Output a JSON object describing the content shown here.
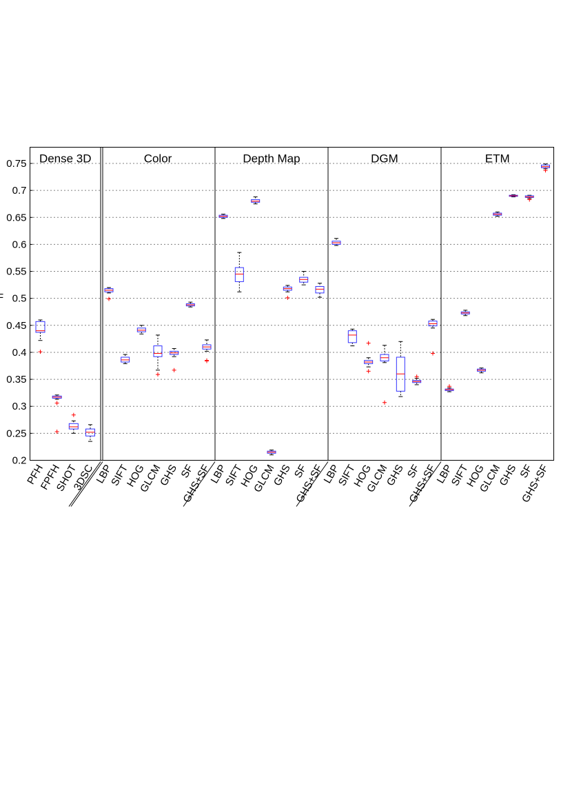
{
  "chart_data": {
    "type": "boxplot",
    "title": "",
    "ylabel": "F",
    "ylim": [
      0.2,
      0.78
    ],
    "yticks": [
      "0.2",
      "0.25",
      "0.3",
      "0.35",
      "0.4",
      "0.45",
      "0.5",
      "0.55",
      "0.6",
      "0.65",
      "0.7",
      "0.75"
    ],
    "grid": true,
    "groups": [
      {
        "name": "Dense 3D",
        "series": [
          {
            "label": "PFH",
            "q1": 0.437,
            "median": 0.44,
            "q3": 0.457,
            "lo": 0.422,
            "hi": 0.46,
            "outliers": [
              0.401
            ]
          },
          {
            "label": "FPFH",
            "q1": 0.315,
            "median": 0.317,
            "q3": 0.319,
            "lo": 0.313,
            "hi": 0.321,
            "outliers": [
              0.306,
              0.253
            ]
          },
          {
            "label": "SHOT",
            "q1": 0.258,
            "median": 0.262,
            "q3": 0.268,
            "lo": 0.25,
            "hi": 0.273,
            "outliers": [
              0.284
            ]
          },
          {
            "label": "3DSC",
            "q1": 0.245,
            "median": 0.252,
            "q3": 0.258,
            "lo": 0.235,
            "hi": 0.266,
            "outliers": []
          }
        ]
      },
      {
        "name": "Color",
        "series": [
          {
            "label": "LBP",
            "q1": 0.512,
            "median": 0.515,
            "q3": 0.518,
            "lo": 0.51,
            "hi": 0.52,
            "outliers": [
              0.499
            ]
          },
          {
            "label": "SIFT",
            "q1": 0.382,
            "median": 0.386,
            "q3": 0.391,
            "lo": 0.379,
            "hi": 0.396,
            "outliers": []
          },
          {
            "label": "HOG",
            "q1": 0.438,
            "median": 0.441,
            "q3": 0.445,
            "lo": 0.434,
            "hi": 0.45,
            "outliers": []
          },
          {
            "label": "GLCM",
            "q1": 0.392,
            "median": 0.398,
            "q3": 0.412,
            "lo": 0.367,
            "hi": 0.432,
            "outliers": [
              0.359
            ]
          },
          {
            "label": "GHS",
            "q1": 0.396,
            "median": 0.399,
            "q3": 0.402,
            "lo": 0.392,
            "hi": 0.407,
            "outliers": [
              0.367
            ]
          },
          {
            "label": "SF",
            "q1": 0.486,
            "median": 0.488,
            "q3": 0.49,
            "lo": 0.484,
            "hi": 0.493,
            "outliers": []
          },
          {
            "label": "GHS+SF",
            "q1": 0.406,
            "median": 0.41,
            "q3": 0.414,
            "lo": 0.402,
            "hi": 0.423,
            "outliers": [
              0.385,
              0.384
            ]
          }
        ]
      },
      {
        "name": "Depth Map",
        "series": [
          {
            "label": "LBP",
            "q1": 0.65,
            "median": 0.652,
            "q3": 0.654,
            "lo": 0.648,
            "hi": 0.656,
            "outliers": []
          },
          {
            "label": "SIFT",
            "q1": 0.531,
            "median": 0.545,
            "q3": 0.557,
            "lo": 0.512,
            "hi": 0.585,
            "outliers": []
          },
          {
            "label": "HOG",
            "q1": 0.678,
            "median": 0.68,
            "q3": 0.683,
            "lo": 0.675,
            "hi": 0.688,
            "outliers": []
          },
          {
            "label": "GLCM",
            "q1": 0.213,
            "median": 0.215,
            "q3": 0.217,
            "lo": 0.21,
            "hi": 0.219,
            "outliers": []
          },
          {
            "label": "GHS",
            "q1": 0.515,
            "median": 0.518,
            "q3": 0.521,
            "lo": 0.512,
            "hi": 0.524,
            "outliers": [
              0.501
            ]
          },
          {
            "label": "SF",
            "q1": 0.53,
            "median": 0.535,
            "q3": 0.539,
            "lo": 0.525,
            "hi": 0.55,
            "outliers": []
          },
          {
            "label": "GHS+SF",
            "q1": 0.51,
            "median": 0.517,
            "q3": 0.522,
            "lo": 0.502,
            "hi": 0.528,
            "outliers": []
          }
        ]
      },
      {
        "name": "DGM",
        "series": [
          {
            "label": "LBP",
            "q1": 0.6,
            "median": 0.603,
            "q3": 0.606,
            "lo": 0.598,
            "hi": 0.611,
            "outliers": []
          },
          {
            "label": "SIFT",
            "q1": 0.418,
            "median": 0.432,
            "q3": 0.44,
            "lo": 0.412,
            "hi": 0.443,
            "outliers": []
          },
          {
            "label": "HOG",
            "q1": 0.379,
            "median": 0.382,
            "q3": 0.385,
            "lo": 0.373,
            "hi": 0.39,
            "outliers": [
              0.417,
              0.365
            ]
          },
          {
            "label": "GLCM",
            "q1": 0.384,
            "median": 0.39,
            "q3": 0.396,
            "lo": 0.381,
            "hi": 0.413,
            "outliers": [
              0.307
            ]
          },
          {
            "label": "GHS",
            "q1": 0.328,
            "median": 0.36,
            "q3": 0.391,
            "lo": 0.318,
            "hi": 0.42,
            "outliers": []
          },
          {
            "label": "SF",
            "q1": 0.344,
            "median": 0.346,
            "q3": 0.348,
            "lo": 0.34,
            "hi": 0.352,
            "outliers": [
              0.355
            ]
          },
          {
            "label": "GHS+SF",
            "q1": 0.449,
            "median": 0.453,
            "q3": 0.458,
            "lo": 0.445,
            "hi": 0.461,
            "outliers": [
              0.398
            ]
          }
        ]
      },
      {
        "name": "ETM",
        "series": [
          {
            "label": "LBP",
            "q1": 0.329,
            "median": 0.331,
            "q3": 0.332,
            "lo": 0.327,
            "hi": 0.334,
            "outliers": [
              0.337
            ]
          },
          {
            "label": "SIFT",
            "q1": 0.471,
            "median": 0.473,
            "q3": 0.475,
            "lo": 0.468,
            "hi": 0.478,
            "outliers": []
          },
          {
            "label": "HOG",
            "q1": 0.365,
            "median": 0.367,
            "q3": 0.369,
            "lo": 0.362,
            "hi": 0.371,
            "outliers": []
          },
          {
            "label": "GLCM",
            "q1": 0.654,
            "median": 0.656,
            "q3": 0.658,
            "lo": 0.652,
            "hi": 0.66,
            "outliers": []
          },
          {
            "label": "GHS",
            "q1": 0.689,
            "median": 0.69,
            "q3": 0.691,
            "lo": 0.688,
            "hi": 0.692,
            "outliers": []
          },
          {
            "label": "SF",
            "q1": 0.687,
            "median": 0.688,
            "q3": 0.69,
            "lo": 0.685,
            "hi": 0.691,
            "outliers": [
              0.683
            ]
          },
          {
            "label": "GHS+SF",
            "q1": 0.742,
            "median": 0.744,
            "q3": 0.747,
            "lo": 0.74,
            "hi": 0.749,
            "outliers": [
              0.737
            ]
          }
        ]
      }
    ]
  }
}
